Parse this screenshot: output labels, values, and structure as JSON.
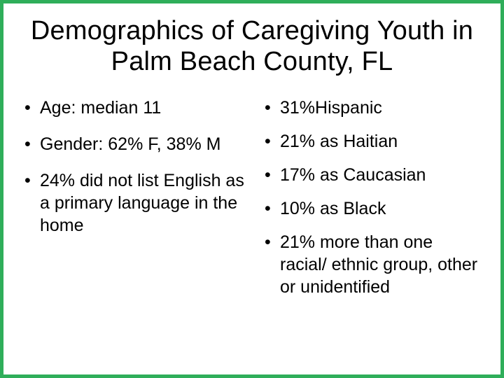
{
  "title": "Demographics of Caregiving Youth in Palm Beach County, FL",
  "left_column": {
    "items": [
      "Age: median 11",
      "Gender: 62% F, 38% M",
      "24% did not list English as a primary language in the home"
    ]
  },
  "right_column": {
    "items": [
      "31%Hispanic",
      "21% as Haitian",
      "17% as Caucasian",
      "10% as Black",
      "21% more than one racial/ ethnic group, other or unidentified"
    ]
  },
  "colors": {
    "border": "#2fae5a",
    "background": "#ffffff",
    "text": "#000000"
  },
  "typography": {
    "title_fontsize": 38,
    "body_fontsize": 25,
    "font_family": "Arial"
  }
}
